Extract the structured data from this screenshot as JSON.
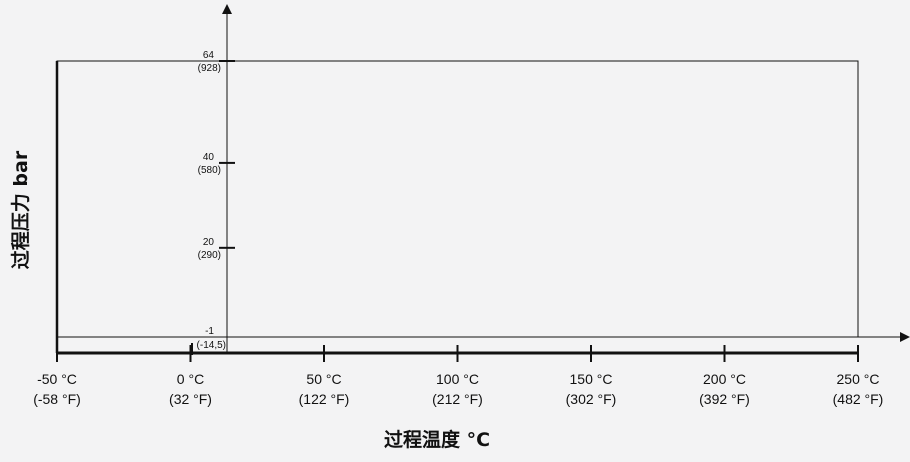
{
  "chart_data": {
    "type": "area",
    "title": "",
    "xlabel": "过程温度 °C",
    "ylabel": "过程压力 bar",
    "xlim": [
      -50,
      250
    ],
    "ylim": [
      -1,
      64
    ],
    "x_ticks": [
      {
        "value": -50,
        "label": "-50 °C",
        "sublabel": "(-58 °F)"
      },
      {
        "value": 0,
        "label": "0 °C",
        "sublabel": "(32 °F)"
      },
      {
        "value": 50,
        "label": "50 °C",
        "sublabel": "(122 °F)"
      },
      {
        "value": 100,
        "label": "100 °C",
        "sublabel": "(212 °F)"
      },
      {
        "value": 150,
        "label": "150 °C",
        "sublabel": "(302 °F)"
      },
      {
        "value": 200,
        "label": "200 °C",
        "sublabel": "(392 °F)"
      },
      {
        "value": 250,
        "label": "250 °C",
        "sublabel": "(482 °F)"
      }
    ],
    "y_ticks": [
      {
        "value": 64,
        "label": "64",
        "sublabel": "(928)"
      },
      {
        "value": 40,
        "label": "40",
        "sublabel": "(580)"
      },
      {
        "value": 20,
        "label": "20",
        "sublabel": "(290)"
      },
      {
        "value": -1,
        "label": "-1",
        "sublabel": "(-14,5)"
      }
    ],
    "series": [
      {
        "x": [
          -50,
          250,
          250,
          -50,
          -50
        ],
        "y": [
          -1,
          -1,
          64,
          64,
          -1
        ]
      }
    ],
    "grid": false,
    "legend": "none",
    "colors": {
      "background": "#f3f3f4",
      "line": "#111111"
    }
  }
}
